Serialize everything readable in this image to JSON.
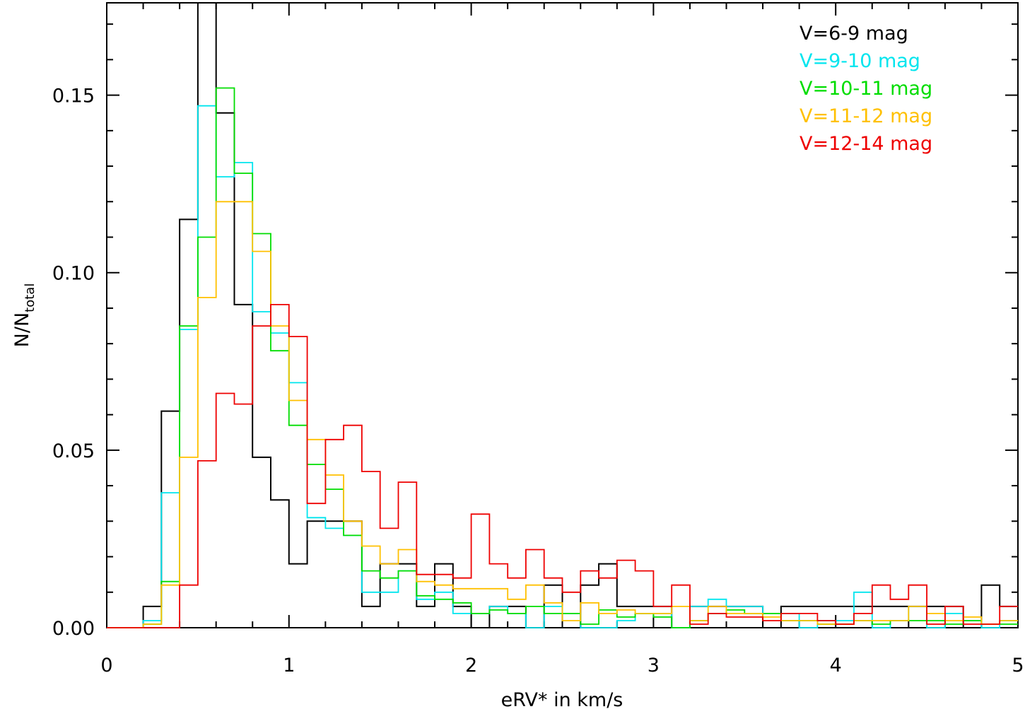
{
  "chart_data": {
    "type": "line",
    "step": true,
    "xlabel": "eRV* in km/s",
    "ylabel": "N/N",
    "ylabel_sub": "total",
    "xlim": [
      0,
      5
    ],
    "ylim": [
      0,
      0.176
    ],
    "x_ticks": [
      0,
      1,
      2,
      3,
      4,
      5
    ],
    "x_tick_labels": [
      "0",
      "1",
      "2",
      "3",
      "4",
      "5"
    ],
    "y_ticks": [
      0.0,
      0.05,
      0.1,
      0.15
    ],
    "y_tick_labels": [
      "0.00",
      "0.05",
      "0.10",
      "0.15"
    ],
    "grid": false,
    "legend_position": "top-right",
    "bin_width": 0.1,
    "x_start": 0.0,
    "series": [
      {
        "name": "V=6-9 mag",
        "color": "#000000",
        "values": [
          0.0,
          0.0,
          0.006,
          0.061,
          0.115,
          0.176,
          0.145,
          0.091,
          0.048,
          0.036,
          0.018,
          0.03,
          0.03,
          0.03,
          0.006,
          0.018,
          0.018,
          0.006,
          0.018,
          0.006,
          0.0,
          0.006,
          0.006,
          0.0,
          0.012,
          0.0,
          0.012,
          0.018,
          0.006,
          0.006,
          0.006,
          0.0,
          0.006,
          0.006,
          0.006,
          0.006,
          0.0,
          0.006,
          0.006,
          0.006,
          0.006,
          0.006,
          0.006,
          0.006,
          0.006,
          0.006,
          0.006,
          0.0,
          0.012,
          0.006
        ]
      },
      {
        "name": "V=9-10 mag",
        "color": "#00e5ee",
        "values": [
          0.0,
          0.0,
          0.002,
          0.038,
          0.084,
          0.147,
          0.127,
          0.131,
          0.089,
          0.083,
          0.069,
          0.031,
          0.028,
          0.026,
          0.01,
          0.01,
          0.016,
          0.008,
          0.01,
          0.004,
          0.004,
          0.006,
          0.004,
          0.0,
          0.006,
          0.004,
          0.0,
          0.0,
          0.002,
          0.004,
          0.004,
          0.0,
          0.006,
          0.008,
          0.006,
          0.006,
          0.004,
          0.004,
          0.0,
          0.002,
          0.002,
          0.01,
          0.0,
          0.002,
          0.006,
          0.0,
          0.004,
          0.002,
          0.0,
          0.002
        ]
      },
      {
        "name": "V=10-11 mag",
        "color": "#00dd00",
        "values": [
          0.0,
          0.0,
          0.001,
          0.013,
          0.085,
          0.11,
          0.152,
          0.128,
          0.111,
          0.078,
          0.057,
          0.046,
          0.039,
          0.026,
          0.016,
          0.014,
          0.016,
          0.009,
          0.008,
          0.007,
          0.004,
          0.005,
          0.004,
          0.006,
          0.004,
          0.004,
          0.001,
          0.005,
          0.003,
          0.004,
          0.003,
          0.0,
          0.002,
          0.004,
          0.005,
          0.004,
          0.004,
          0.002,
          0.002,
          0.001,
          0.001,
          0.002,
          0.001,
          0.002,
          0.002,
          0.002,
          0.001,
          0.002,
          0.001,
          0.001
        ]
      },
      {
        "name": "V=11-12 mag",
        "color": "#ffc000",
        "values": [
          0.0,
          0.0,
          0.001,
          0.012,
          0.048,
          0.093,
          0.12,
          0.12,
          0.106,
          0.085,
          0.064,
          0.053,
          0.043,
          0.03,
          0.023,
          0.018,
          0.022,
          0.013,
          0.012,
          0.011,
          0.011,
          0.011,
          0.008,
          0.012,
          0.007,
          0.002,
          0.007,
          0.004,
          0.005,
          0.004,
          0.004,
          0.006,
          0.002,
          0.006,
          0.004,
          0.004,
          0.003,
          0.002,
          0.002,
          0.001,
          0.001,
          0.002,
          0.002,
          0.002,
          0.006,
          0.004,
          0.002,
          0.003,
          0.001,
          0.002
        ]
      },
      {
        "name": "V=12-14 mag",
        "color": "#ee0000",
        "values": [
          0.0,
          0.0,
          0.0,
          0.0,
          0.012,
          0.047,
          0.066,
          0.063,
          0.085,
          0.091,
          0.082,
          0.035,
          0.053,
          0.057,
          0.044,
          0.028,
          0.041,
          0.0,
          0.0,
          0.0,
          0.032,
          0.018,
          0.0,
          0.022,
          0.0,
          0.0,
          0.016,
          0.0,
          0.0,
          0.016,
          0.0,
          0.0,
          0.0,
          0.0,
          0.0,
          0.0,
          0.0,
          0.0,
          0.0,
          0.0,
          0.0,
          0.0,
          0.0,
          0.0,
          0.0,
          0.0,
          0.0,
          0.0,
          0.0,
          0.0
        ],
        "values_full": [
          0.0,
          0.0,
          0.0,
          0.0,
          0.012,
          0.047,
          0.066,
          0.063,
          0.085,
          0.091,
          0.082,
          0.035,
          0.053,
          0.057,
          0.044,
          0.028,
          0.041,
          0.015,
          0.015,
          0.014,
          0.032,
          0.018,
          0.014,
          0.022,
          0.014,
          0.01,
          0.016,
          0.014,
          0.019,
          0.016,
          0.006,
          0.012,
          0.001,
          0.004,
          0.003,
          0.003,
          0.002,
          0.004,
          0.004,
          0.002,
          0.001,
          0.004,
          0.012,
          0.008,
          0.012,
          0.001,
          0.006,
          0.001,
          0.001,
          0.006
        ]
      }
    ]
  }
}
